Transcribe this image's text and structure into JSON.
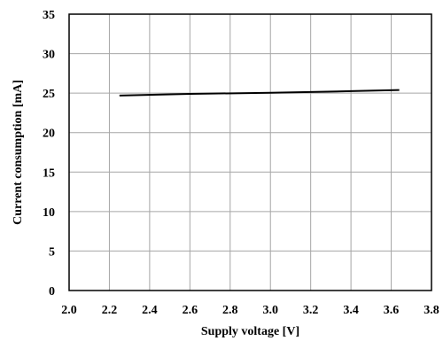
{
  "chart_data": {
    "type": "line",
    "title": "",
    "xlabel": "Supply voltage [V]",
    "ylabel": "Current consumption [mA]",
    "xlim": [
      2.0,
      3.8
    ],
    "ylim": [
      0,
      35
    ],
    "x_ticks": [
      "2.0",
      "2.2",
      "2.4",
      "2.6",
      "2.8",
      "3.0",
      "3.2",
      "3.4",
      "3.6",
      "3.8"
    ],
    "y_ticks": [
      "0",
      "5",
      "10",
      "15",
      "20",
      "25",
      "30",
      "35"
    ],
    "grid": true,
    "legend": "none",
    "series": [
      {
        "color": "#000000",
        "x": [
          2.25,
          2.6,
          3.0,
          3.4,
          3.64
        ],
        "y": [
          24.7,
          24.9,
          25.05,
          25.25,
          25.4
        ]
      }
    ]
  }
}
